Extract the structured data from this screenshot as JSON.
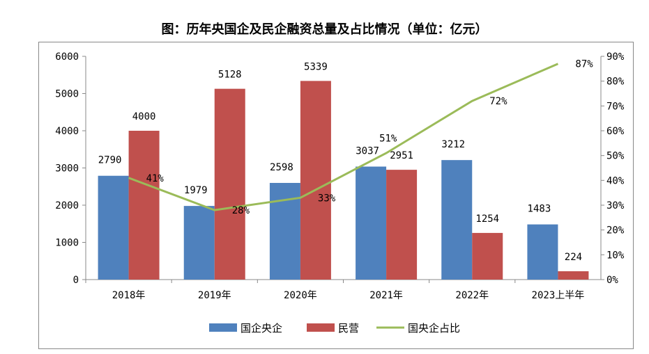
{
  "chart_data": {
    "type": "bar",
    "title": "图：历年央国企及民企融资总量及占比情况（单位：亿元）",
    "categories": [
      "2018年",
      "2019年",
      "2020年",
      "2021年",
      "2022年",
      "2023上半年"
    ],
    "series": [
      {
        "name": "国企央企",
        "type": "bar",
        "axis": "left",
        "color": "#4f81bd",
        "values": [
          2790,
          1979,
          2598,
          3037,
          3212,
          1483
        ]
      },
      {
        "name": "民营",
        "type": "bar",
        "axis": "left",
        "color": "#c0504d",
        "values": [
          4000,
          5128,
          5339,
          2951,
          1254,
          224
        ]
      },
      {
        "name": "国央企占比",
        "type": "line",
        "axis": "right",
        "color": "#9bbb59",
        "values": [
          41,
          28,
          33,
          51,
          72,
          87
        ],
        "labels": [
          "41%",
          "28%",
          "33%",
          "51%",
          "72%",
          "87%"
        ]
      }
    ],
    "ylim": [
      0,
      6000
    ],
    "yticks": [
      "0",
      "1000",
      "2000",
      "3000",
      "4000",
      "5000",
      "6000"
    ],
    "y2lim": [
      0,
      90
    ],
    "y2ticks": [
      "0%",
      "10%",
      "20%",
      "30%",
      "40%",
      "50%",
      "60%",
      "70%",
      "80%",
      "90%"
    ],
    "legend": "bottom",
    "grid": false
  }
}
